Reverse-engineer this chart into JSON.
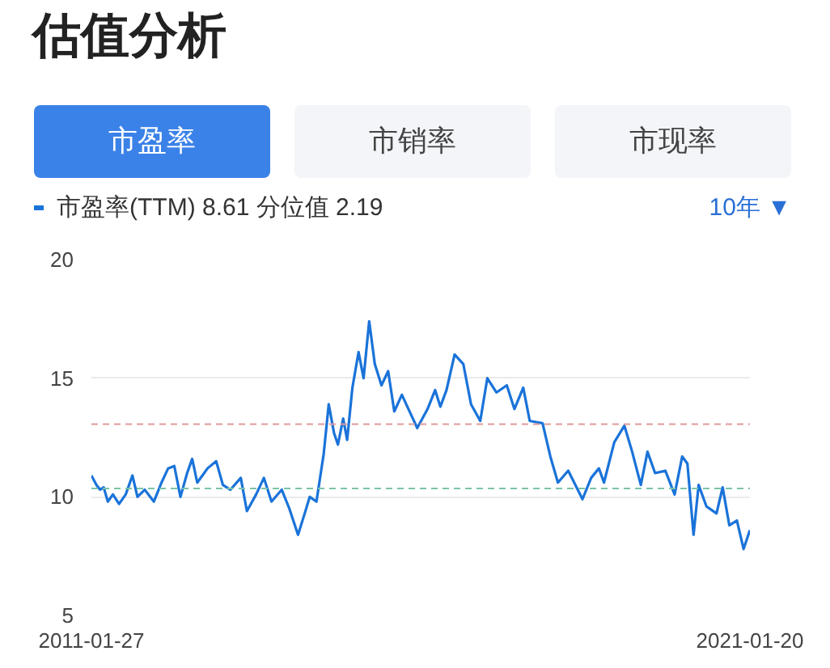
{
  "chart_data": {
    "type": "line",
    "title": "估值分析",
    "legend": "top",
    "grid": "y",
    "annotations": [
      "市盈率",
      "市销率",
      "市现率",
      "10年 ▼"
    ],
    "xlim": [
      "2011-01-27",
      "2021-01-20"
    ],
    "xticks": [
      {
        "value": "2011-01-27",
        "label": "2011-01-27"
      },
      {
        "value": "2021-01-20",
        "label": "2021-01-20"
      }
    ],
    "ylim": [
      5,
      20
    ],
    "yticks": [
      5,
      10,
      15,
      20
    ],
    "ref_lines": [
      {
        "axis": "y",
        "value": 13.06,
        "color": "#e09a9a",
        "line_style": "dashed"
      },
      {
        "axis": "y",
        "value": 10.35,
        "color": "#7cc4a4",
        "line_style": "dashed"
      }
    ],
    "x": [
      "2011-01-27",
      "2011-02-24",
      "2011-03-16",
      "2011-04-05",
      "2011-04-28",
      "2011-05-26",
      "2011-06-29",
      "2011-08-05",
      "2011-09-11",
      "2011-10-09",
      "2011-11-18",
      "2012-01-08",
      "2012-02-19",
      "2012-03-27",
      "2012-04-30",
      "2012-06-03",
      "2012-07-10",
      "2012-08-07",
      "2012-09-04",
      "2012-10-31",
      "2012-12-18",
      "2013-01-24",
      "2013-03-07",
      "2013-05-03",
      "2013-06-06",
      "2013-07-27",
      "2013-09-08",
      "2013-10-20",
      "2013-12-16",
      "2014-01-27",
      "2014-03-16",
      "2014-04-22",
      "2014-05-20",
      "2014-06-26",
      "2014-08-05",
      "2014-09-02",
      "2014-10-01",
      "2014-10-23",
      "2014-11-21",
      "2014-12-13",
      "2015-01-11",
      "2015-02-14",
      "2015-03-14",
      "2015-04-14",
      "2015-05-15",
      "2015-06-21",
      "2015-07-28",
      "2015-08-31",
      "2015-10-12",
      "2016-01-05",
      "2016-03-02",
      "2016-04-13",
      "2016-05-12",
      "2016-06-15",
      "2016-07-30",
      "2016-09-16",
      "2016-10-29",
      "2016-12-19",
      "2017-01-27",
      "2017-03-19",
      "2017-05-15",
      "2017-06-26",
      "2017-08-14",
      "2017-09-19",
      "2017-11-29",
      "2018-01-11",
      "2018-02-22",
      "2018-04-20",
      "2018-07-08",
      "2018-08-25",
      "2018-10-07",
      "2018-11-04",
      "2018-12-31",
      "2019-02-25",
      "2019-04-09",
      "2019-05-27",
      "2019-07-03",
      "2019-08-14",
      "2019-10-10",
      "2019-11-30",
      "2020-01-11",
      "2020-02-09",
      "2020-03-14",
      "2020-04-11",
      "2020-05-24",
      "2020-07-19",
      "2020-08-22",
      "2020-09-28",
      "2020-11-09",
      "2020-12-16",
      "2021-01-20"
    ],
    "series": [
      {
        "name": "市盈率(TTM) 8.61 分位值 2.19",
        "color": "#1a73d9",
        "values": [
          10.9,
          10.5,
          10.3,
          10.4,
          9.8,
          10.1,
          9.7,
          10.1,
          10.9,
          10.0,
          10.3,
          9.8,
          10.6,
          11.2,
          11.3,
          10.0,
          11.0,
          11.6,
          10.6,
          11.2,
          11.5,
          10.5,
          10.3,
          10.8,
          9.4,
          10.1,
          10.8,
          9.8,
          10.3,
          9.5,
          8.4,
          9.3,
          10.0,
          9.8,
          11.8,
          13.9,
          12.7,
          12.2,
          13.3,
          12.4,
          14.6,
          16.1,
          15.0,
          17.4,
          15.6,
          14.7,
          15.3,
          13.6,
          14.3,
          12.9,
          13.7,
          14.5,
          13.8,
          14.5,
          16.0,
          15.6,
          13.9,
          13.2,
          15.0,
          14.4,
          14.7,
          13.7,
          14.6,
          13.2,
          13.1,
          11.7,
          10.6,
          11.1,
          9.9,
          10.8,
          11.2,
          10.6,
          12.3,
          13.0,
          11.9,
          10.5,
          11.9,
          11.0,
          11.1,
          10.1,
          11.7,
          11.4,
          8.4,
          10.5,
          9.6,
          9.3,
          10.4,
          8.8,
          9.0,
          7.8,
          8.6
        ]
      }
    ]
  }
}
